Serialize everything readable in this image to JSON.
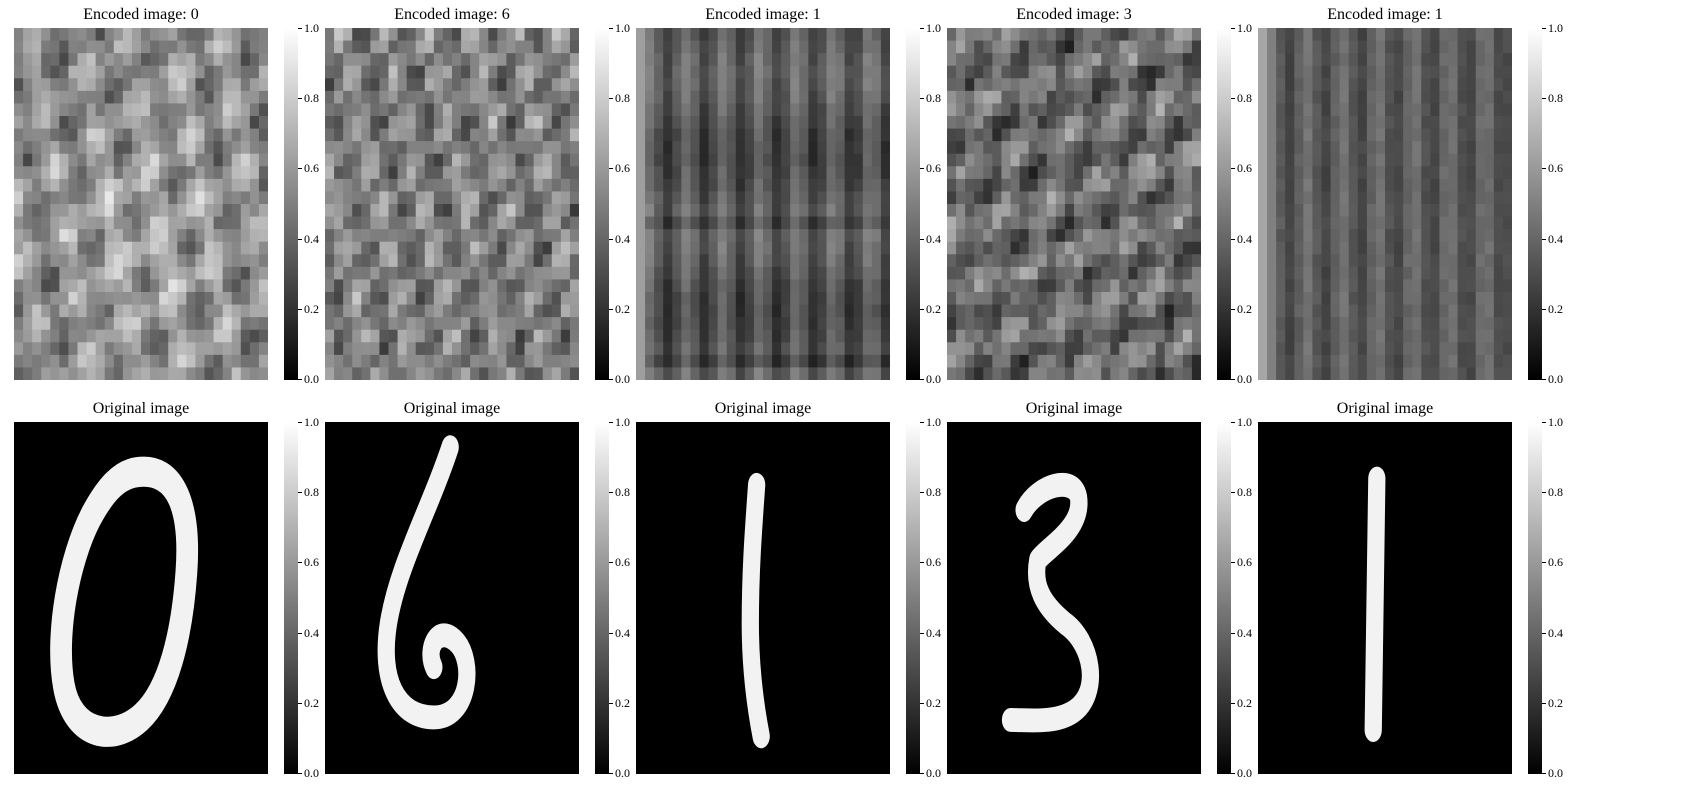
{
  "chart_data": [
    {
      "type": "heatmap",
      "row": "encoded",
      "title": "Encoded image: 0",
      "colorbar": {
        "range": [
          0,
          1
        ],
        "ticks": [
          "0.0",
          "0.2",
          "0.4",
          "0.6",
          "0.8",
          "1.0"
        ],
        "colormap": "gray"
      }
    },
    {
      "type": "heatmap",
      "row": "encoded",
      "title": "Encoded image: 6",
      "colorbar": {
        "range": [
          0,
          1
        ],
        "ticks": [
          "0.0",
          "0.2",
          "0.4",
          "0.6",
          "0.8",
          "1.0"
        ],
        "colormap": "gray"
      }
    },
    {
      "type": "heatmap",
      "row": "encoded",
      "title": "Encoded image: 1",
      "colorbar": {
        "range": [
          0,
          1
        ],
        "ticks": [
          "0.0",
          "0.2",
          "0.4",
          "0.6",
          "0.8",
          "1.0"
        ],
        "colormap": "gray"
      }
    },
    {
      "type": "heatmap",
      "row": "encoded",
      "title": "Encoded image: 3",
      "colorbar": {
        "range": [
          0,
          1
        ],
        "ticks": [
          "0.0",
          "0.2",
          "0.4",
          "0.6",
          "0.8",
          "1.0"
        ],
        "colormap": "gray"
      }
    },
    {
      "type": "heatmap",
      "row": "encoded",
      "title": "Encoded image: 1",
      "colorbar": {
        "range": [
          0,
          1
        ],
        "ticks": [
          "0.0",
          "0.2",
          "0.4",
          "0.6",
          "0.8",
          "1.0"
        ],
        "colormap": "gray"
      }
    },
    {
      "type": "heatmap",
      "row": "original",
      "title": "Original image",
      "digit": "0",
      "colorbar": {
        "range": [
          0,
          1
        ],
        "ticks": [
          "0.0",
          "0.2",
          "0.4",
          "0.6",
          "0.8",
          "1.0"
        ],
        "colormap": "gray"
      }
    },
    {
      "type": "heatmap",
      "row": "original",
      "title": "Original image",
      "digit": "6",
      "colorbar": {
        "range": [
          0,
          1
        ],
        "ticks": [
          "0.0",
          "0.2",
          "0.4",
          "0.6",
          "0.8",
          "1.0"
        ],
        "colormap": "gray"
      }
    },
    {
      "type": "heatmap",
      "row": "original",
      "title": "Original image",
      "digit": "1",
      "colorbar": {
        "range": [
          0,
          1
        ],
        "ticks": [
          "0.0",
          "0.2",
          "0.4",
          "0.6",
          "0.8",
          "1.0"
        ],
        "colormap": "gray"
      }
    },
    {
      "type": "heatmap",
      "row": "original",
      "title": "Original image",
      "digit": "3",
      "colorbar": {
        "range": [
          0,
          1
        ],
        "ticks": [
          "0.0",
          "0.2",
          "0.4",
          "0.6",
          "0.8",
          "1.0"
        ],
        "colormap": "gray"
      }
    },
    {
      "type": "heatmap",
      "row": "original",
      "title": "Original image",
      "digit": "1",
      "colorbar": {
        "range": [
          0,
          1
        ],
        "ticks": [
          "0.0",
          "0.2",
          "0.4",
          "0.6",
          "0.8",
          "1.0"
        ],
        "colormap": "gray"
      }
    }
  ]
}
